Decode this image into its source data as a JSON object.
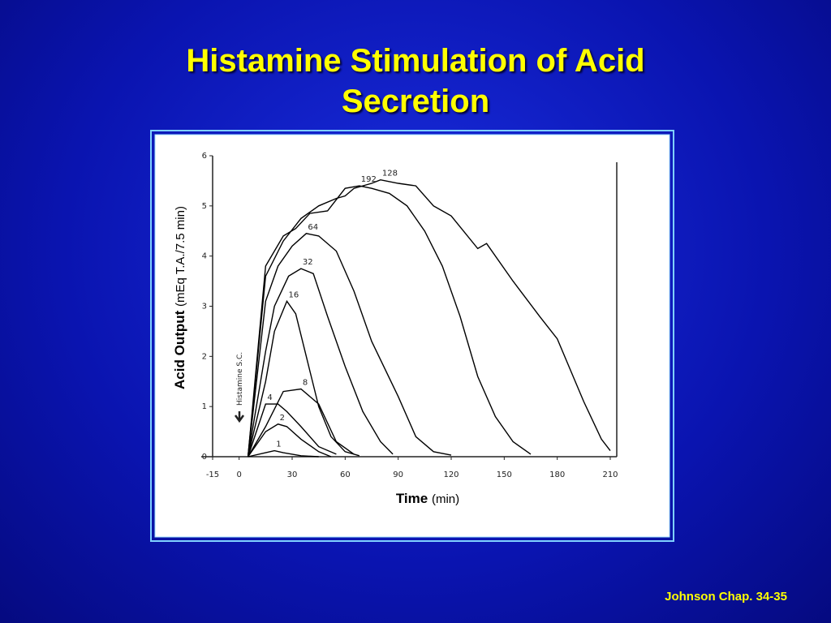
{
  "title": "Histamine Stimulation of Acid Secretion",
  "footer": "Johnson Chap. 34-35",
  "chart_data": {
    "type": "line",
    "x_label": {
      "main": "Time",
      "unit": "(min)"
    },
    "y_label": {
      "main": "Acid Output",
      "unit": "(mEq T.A./7.5 min)"
    },
    "annotation": "Histamine S.C.",
    "xlim": [
      -15,
      210
    ],
    "xticks": [
      -15,
      0,
      30,
      60,
      90,
      120,
      150,
      180,
      210
    ],
    "ylim": [
      0,
      6
    ],
    "yticks": [
      0,
      1,
      2,
      3,
      4,
      5,
      6
    ],
    "series": [
      {
        "name": "1",
        "color": "#000000",
        "x": [
          5,
          15,
          20,
          25,
          35,
          45
        ],
        "values": [
          0,
          0.08,
          0.12,
          0.08,
          0.02,
          0
        ]
      },
      {
        "name": "2",
        "color": "#000000",
        "x": [
          5,
          15,
          22,
          27,
          35,
          45,
          52
        ],
        "values": [
          0,
          0.5,
          0.65,
          0.6,
          0.35,
          0.1,
          0
        ]
      },
      {
        "name": "4",
        "color": "#000000",
        "x": [
          5,
          15,
          22,
          27,
          35,
          45,
          55
        ],
        "values": [
          0,
          1.05,
          1.05,
          0.9,
          0.6,
          0.2,
          0.05
        ]
      },
      {
        "name": "8",
        "color": "#000000",
        "x": [
          5,
          15,
          25,
          35,
          45,
          55,
          65
        ],
        "values": [
          0,
          0.6,
          1.3,
          1.35,
          1.05,
          0.3,
          0.05
        ]
      },
      {
        "name": "16",
        "color": "#000000",
        "x": [
          5,
          15,
          20,
          27,
          32,
          38,
          45,
          52,
          60,
          68
        ],
        "values": [
          0,
          1.5,
          2.5,
          3.1,
          2.85,
          2.0,
          1.0,
          0.4,
          0.1,
          0.02
        ]
      },
      {
        "name": "32",
        "color": "#000000",
        "x": [
          5,
          15,
          20,
          28,
          35,
          42,
          50,
          60,
          70,
          80,
          87
        ],
        "values": [
          0,
          2.1,
          3.0,
          3.6,
          3.75,
          3.65,
          2.8,
          1.8,
          0.9,
          0.3,
          0.05
        ]
      },
      {
        "name": "64",
        "color": "#000000",
        "x": [
          5,
          15,
          22,
          30,
          38,
          45,
          55,
          65,
          75,
          90,
          100,
          110,
          120
        ],
        "values": [
          0,
          3.1,
          3.8,
          4.2,
          4.45,
          4.4,
          4.1,
          3.3,
          2.3,
          1.2,
          0.4,
          0.1,
          0.03
        ]
      },
      {
        "name": "128",
        "color": "#000000",
        "x": [
          5,
          15,
          25,
          35,
          45,
          55,
          60,
          65,
          75,
          80,
          90,
          100,
          110,
          120,
          135,
          140,
          155,
          170,
          180,
          195,
          205,
          210
        ],
        "values": [
          0,
          3.6,
          4.3,
          4.75,
          5.0,
          5.15,
          5.2,
          5.35,
          5.45,
          5.52,
          5.45,
          5.4,
          5.0,
          4.8,
          4.15,
          4.25,
          3.5,
          2.8,
          2.35,
          1.1,
          0.35,
          0.12
        ]
      },
      {
        "name": "192",
        "color": "#000000",
        "x": [
          5,
          15,
          25,
          32,
          40,
          50,
          60,
          68,
          75,
          85,
          95,
          105,
          115,
          125,
          135,
          145,
          155,
          165
        ],
        "values": [
          0,
          3.8,
          4.4,
          4.55,
          4.85,
          4.9,
          5.35,
          5.4,
          5.35,
          5.25,
          5.0,
          4.5,
          3.8,
          2.8,
          1.6,
          0.8,
          0.3,
          0.05
        ]
      }
    ]
  }
}
